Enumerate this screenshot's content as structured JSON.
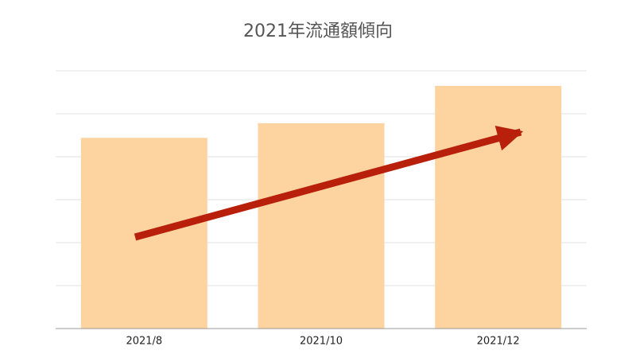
{
  "chart_data": {
    "type": "bar",
    "title": "2021年流通額傾向",
    "categories": [
      "2021/8",
      "2021/10",
      "2021/12"
    ],
    "values": [
      4.44,
      4.78,
      5.65
    ],
    "color": "#fdd3a0",
    "ylim": [
      0,
      6
    ],
    "yticks": [
      0,
      1,
      2,
      3,
      4,
      5,
      6
    ],
    "grid": true,
    "tick_labels": false
  }
}
